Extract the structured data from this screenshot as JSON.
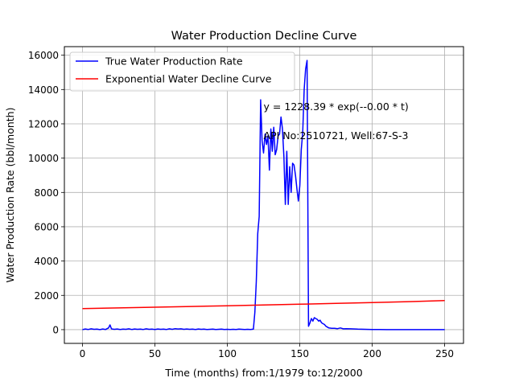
{
  "chart_data": {
    "type": "line",
    "title": "Water Production Decline Curve",
    "xlabel": "Time (months) from:1/1979 to:12/2000",
    "ylabel": "Water Production Rate (bbl/month)",
    "xlim": [
      -12.5,
      263
    ],
    "ylim": [
      -800,
      16500
    ],
    "xticks": [
      0,
      50,
      100,
      150,
      200,
      250
    ],
    "yticks": [
      0,
      2000,
      4000,
      6000,
      8000,
      10000,
      12000,
      14000,
      16000
    ],
    "grid": true,
    "legend_position": "top-left",
    "annotations": [
      {
        "text": "y = 1228.39 * exp(--0.00 * t)",
        "x": 125,
        "y": 12800
      },
      {
        "text": "API No:2510721, Well:67-S-3",
        "x": 125,
        "y": 11100
      }
    ],
    "series": [
      {
        "name": "True Water Production Rate",
        "color": "#0000ff",
        "x": [
          0,
          2,
          4,
          6,
          8,
          10,
          12,
          14,
          16,
          17,
          18,
          19,
          20,
          21,
          22,
          24,
          26,
          28,
          30,
          32,
          34,
          36,
          38,
          40,
          42,
          44,
          46,
          48,
          50,
          52,
          54,
          56,
          58,
          60,
          62,
          64,
          66,
          68,
          70,
          72,
          74,
          76,
          78,
          80,
          82,
          84,
          86,
          88,
          90,
          92,
          94,
          96,
          98,
          100,
          102,
          104,
          106,
          108,
          110,
          112,
          114,
          116,
          118,
          119,
          120,
          121,
          122,
          123,
          124,
          125,
          126,
          127,
          128,
          129,
          130,
          131,
          132,
          133,
          134,
          135,
          136,
          137,
          138,
          139,
          140,
          141,
          142,
          143,
          144,
          145,
          146,
          147,
          148,
          149,
          150,
          151,
          152,
          153,
          154,
          155,
          156,
          157,
          158,
          159,
          160,
          161,
          162,
          163,
          164,
          165,
          166,
          167,
          168,
          169,
          170,
          172,
          174,
          176,
          178,
          180,
          182,
          185,
          190,
          195,
          200,
          205,
          210,
          220,
          230,
          240,
          250
        ],
        "y": [
          0,
          40,
          10,
          50,
          20,
          30,
          0,
          40,
          10,
          60,
          100,
          280,
          50,
          30,
          20,
          40,
          10,
          30,
          20,
          50,
          10,
          40,
          20,
          30,
          10,
          50,
          20,
          30,
          10,
          40,
          20,
          30,
          10,
          50,
          20,
          60,
          40,
          50,
          20,
          40,
          20,
          30,
          10,
          40,
          20,
          30,
          10,
          20,
          30,
          10,
          20,
          30,
          10,
          20,
          10,
          20,
          10,
          30,
          20,
          10,
          20,
          10,
          30,
          1000,
          2800,
          5600,
          6600,
          13400,
          11000,
          10300,
          11400,
          10800,
          11300,
          9300,
          11700,
          10400,
          11800,
          10200,
          10500,
          11300,
          11400,
          12400,
          11700,
          10100,
          7300,
          10400,
          7300,
          9500,
          8000,
          9700,
          9600,
          9000,
          8200,
          7500,
          8400,
          10500,
          11500,
          14000,
          15200,
          15700,
          200,
          400,
          650,
          500,
          700,
          650,
          600,
          500,
          550,
          400,
          350,
          300,
          200,
          150,
          100,
          80,
          80,
          60,
          100,
          50,
          60,
          50,
          30,
          20,
          10,
          5,
          0,
          0,
          0,
          0,
          0
        ]
      },
      {
        "name": "Exponential Water Decline Curve",
        "color": "#ff0000",
        "x": [
          0,
          25,
          50,
          75,
          100,
          125,
          150,
          175,
          200,
          225,
          250
        ],
        "y": [
          1228,
          1268,
          1308,
          1350,
          1393,
          1438,
          1484,
          1531,
          1580,
          1631,
          1700
        ]
      }
    ]
  }
}
